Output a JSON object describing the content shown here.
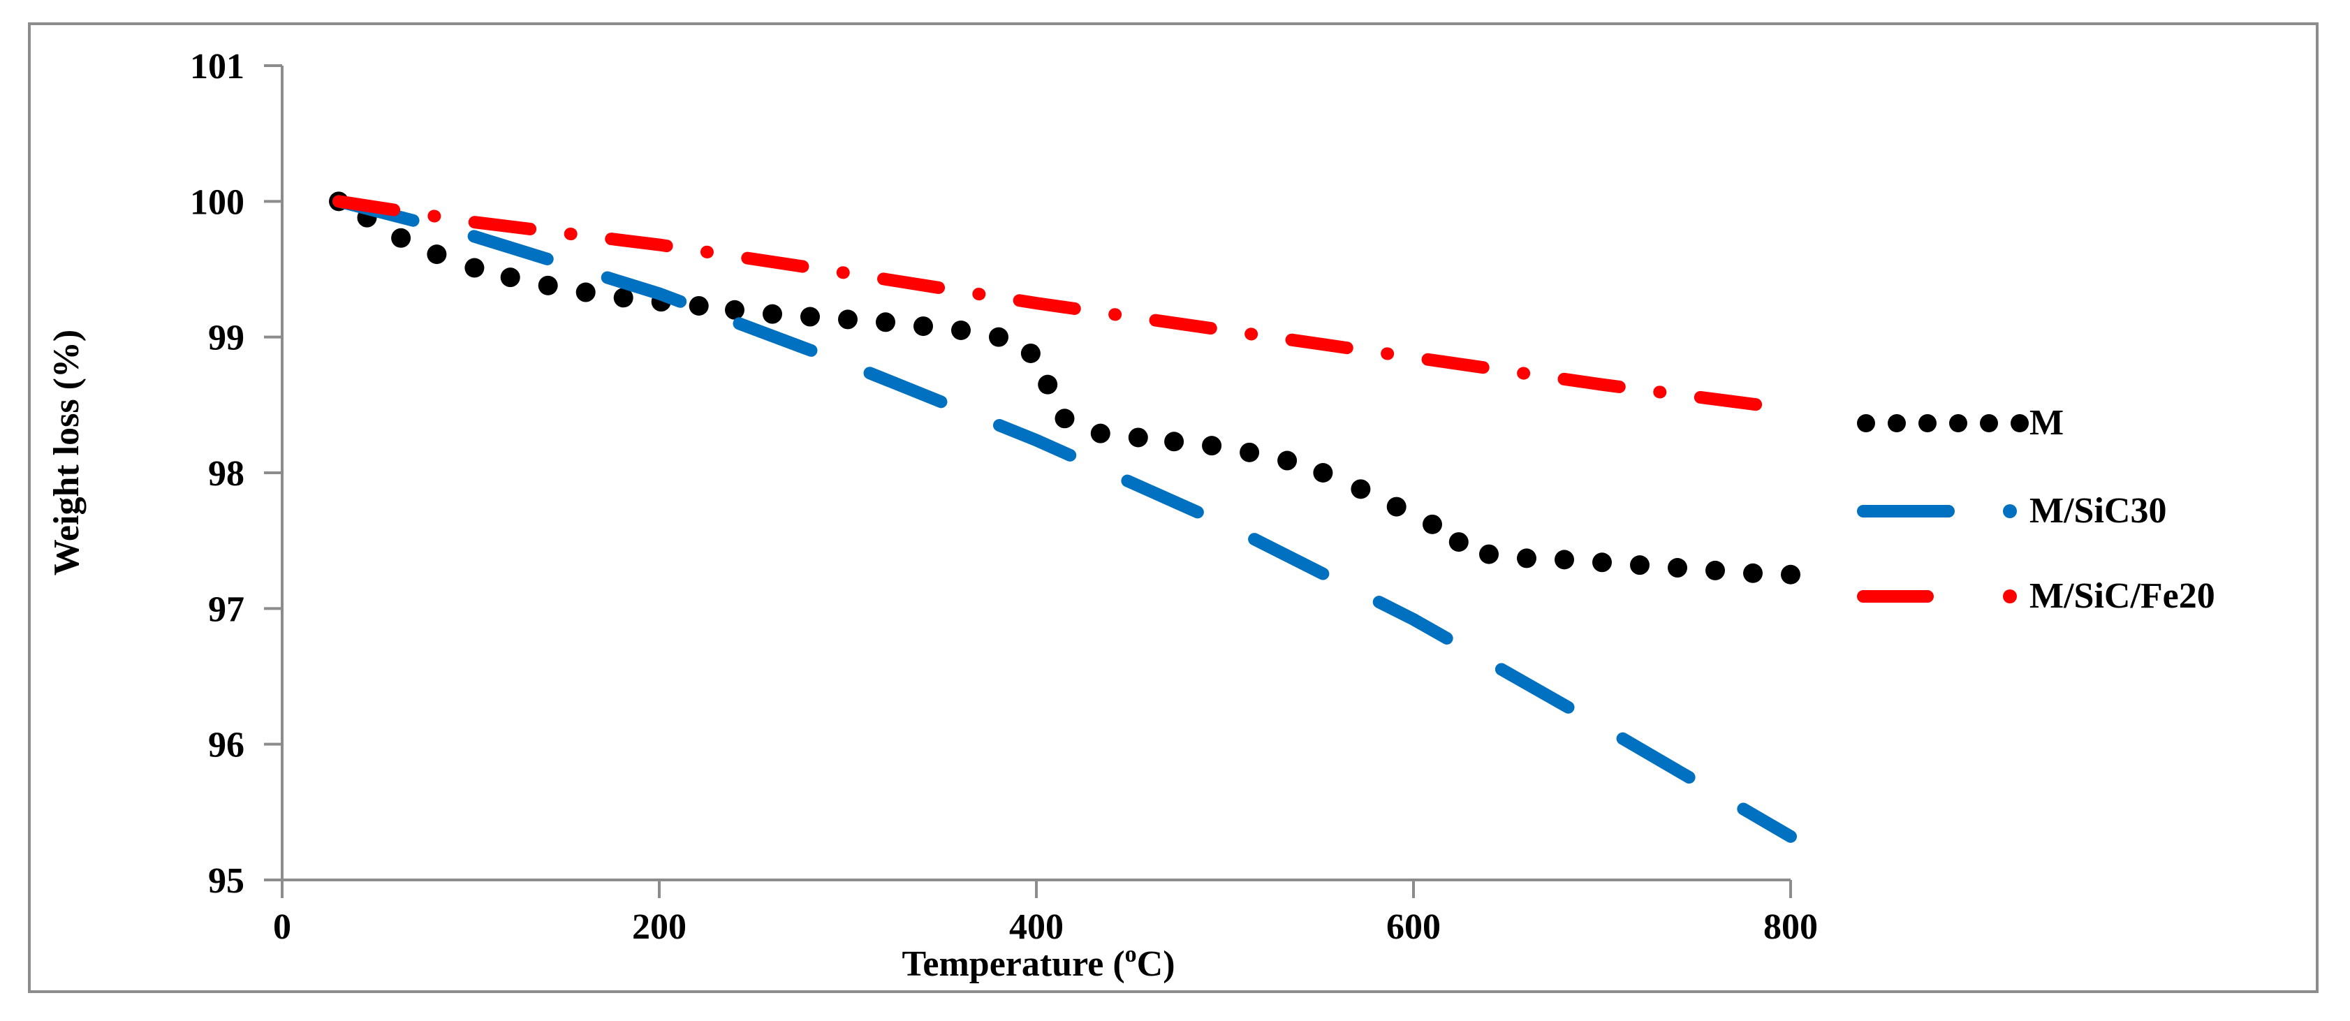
{
  "chart_data": {
    "type": "line",
    "title": "",
    "xlabel": "Temperature (°C)",
    "xlabel_main": "Temperature (",
    "xlabel_sup": "o",
    "xlabel_end": "C)",
    "ylabel": "Weight loss (%)",
    "xlim": [
      0,
      800
    ],
    "ylim": [
      95,
      101
    ],
    "xticks": [
      0,
      200,
      400,
      600,
      800
    ],
    "yticks": [
      95,
      96,
      97,
      98,
      99,
      100,
      101
    ],
    "xtick_labels": [
      "0",
      "200",
      "400",
      "600",
      "800"
    ],
    "ytick_labels": [
      "95",
      "96",
      "97",
      "98",
      "99",
      "100",
      "101"
    ],
    "grid": false,
    "legend_position": "right",
    "series": [
      {
        "name": "M",
        "style": "dots",
        "color": "#000000",
        "x": [
          30,
          45,
          63,
          82,
          102,
          121,
          141,
          161,
          181,
          201,
          221,
          240,
          260,
          280,
          300,
          320,
          340,
          360,
          380,
          397,
          406,
          415,
          434,
          454,
          473,
          493,
          513,
          533,
          552,
          572,
          591,
          610,
          624,
          640,
          660,
          680,
          700,
          720,
          740,
          760,
          780,
          800
        ],
        "y": [
          100.0,
          99.88,
          99.73,
          99.61,
          99.51,
          99.44,
          99.38,
          99.33,
          99.29,
          99.26,
          99.23,
          99.2,
          99.17,
          99.15,
          99.13,
          99.11,
          99.08,
          99.05,
          99.0,
          98.88,
          98.65,
          98.4,
          98.29,
          98.26,
          98.23,
          98.2,
          98.15,
          98.09,
          98.0,
          97.88,
          97.75,
          97.62,
          97.49,
          97.4,
          97.37,
          97.36,
          97.34,
          97.32,
          97.3,
          97.28,
          97.26,
          97.25
        ]
      },
      {
        "name": "M/SiC30",
        "style": "long-dash",
        "color": "#0070c0",
        "x": [
          30,
          100,
          200,
          300,
          400,
          500,
          600,
          700,
          800
        ],
        "y": [
          100.0,
          99.75,
          99.32,
          98.8,
          98.24,
          97.62,
          96.92,
          96.13,
          95.32
        ]
      },
      {
        "name": "M/SiC/Fe20",
        "style": "dash-dot",
        "color": "#ff0000",
        "x": [
          30,
          100,
          200,
          300,
          400,
          500,
          600,
          700,
          800
        ],
        "y": [
          100.0,
          99.85,
          99.68,
          99.47,
          99.25,
          99.05,
          98.85,
          98.65,
          98.47
        ]
      }
    ]
  }
}
